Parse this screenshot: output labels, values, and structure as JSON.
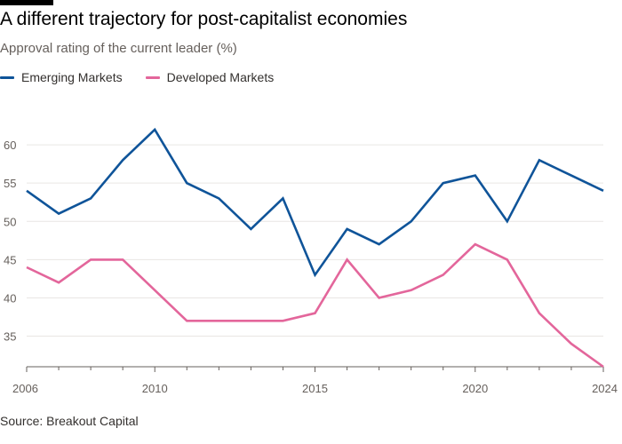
{
  "chart_data": {
    "type": "line",
    "title": "A different trajectory for post-capitalist economies",
    "subtitle": "Approval rating of the current leader (%)",
    "source": "Source: Breakout Capital",
    "x": [
      2006,
      2007,
      2008,
      2009,
      2010,
      2011,
      2012,
      2013,
      2014,
      2015,
      2016,
      2017,
      2018,
      2019,
      2020,
      2021,
      2022,
      2023,
      2024
    ],
    "xticks": [
      2006,
      2010,
      2015,
      2020,
      2024
    ],
    "yticks": [
      35,
      40,
      45,
      50,
      55,
      60
    ],
    "xlim": [
      2006,
      2024
    ],
    "ylim": [
      31,
      65
    ],
    "grid": "horizontal",
    "legend_position": "top-left",
    "series": [
      {
        "name": "Emerging Markets",
        "color": "#0f5499",
        "values": [
          54,
          51,
          53,
          58,
          62,
          55,
          53,
          49,
          53,
          43,
          49,
          47,
          50,
          55,
          56,
          50,
          58,
          56,
          54
        ]
      },
      {
        "name": "Developed Markets",
        "color": "#e3669b",
        "values": [
          44,
          42,
          45,
          45,
          41,
          37,
          37,
          37,
          37,
          38,
          45,
          40,
          41,
          43,
          47,
          45,
          38,
          34,
          31
        ]
      }
    ]
  }
}
